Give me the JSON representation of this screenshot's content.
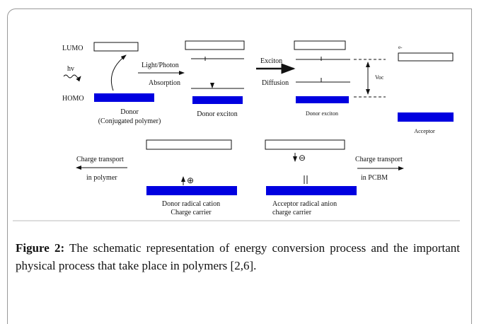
{
  "figure": {
    "labels": {
      "lumo": "LUMO",
      "homo": "HOMO",
      "hv": "hv",
      "light": "Light/Photon",
      "absorption": "Absorption",
      "donor": "Donor",
      "conjugated": "(Conjugated polymer)",
      "donor_exciton_1": "Donor exciton",
      "exciton": "Exciton",
      "diffusion": "Diffusion",
      "donor_exciton_2": "Donor exciton",
      "electron": "e-",
      "voc": "Voc",
      "acceptor": "Acceptor",
      "transport_left": "Charge transport",
      "in_polymer": "in polymer",
      "cation": "Donor radical cation",
      "cation_carrier": "Charge carrier",
      "plus": "⊕",
      "minus": "⊖",
      "anion": "Acceptor radical anion",
      "anion_carrier": "charge carrier",
      "transport_right": "Charge transport",
      "in_pcbm": "in PCBM"
    }
  },
  "caption": {
    "label": "Figure 2:",
    "text": "The schematic representation of energy conversion process and the important physical process that take place in polymers [2,6]."
  }
}
